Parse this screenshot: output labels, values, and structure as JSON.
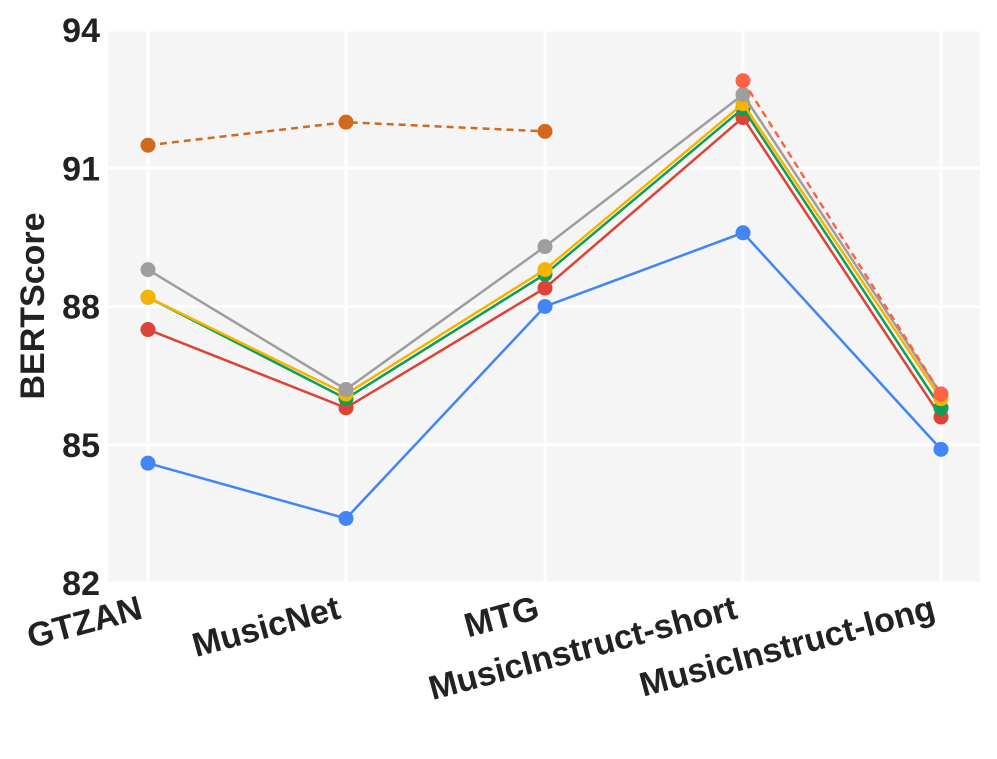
{
  "chart_data": {
    "type": "line",
    "title": "",
    "xlabel": "",
    "ylabel": "BERTScore",
    "categories": [
      "GTZAN",
      "MusicNet",
      "MTG",
      "MusicInstruct-short",
      "MusicInstruct-long"
    ],
    "yticks": [
      "82",
      "85",
      "88",
      "91",
      "94"
    ],
    "ylim": [
      82,
      94
    ],
    "grid": true,
    "legend": "none",
    "series": [
      {
        "color": "#d2691e",
        "dashed": true,
        "values": [
          91.5,
          92.0,
          91.8,
          null,
          null
        ]
      },
      {
        "color": "#4285f4",
        "dashed": false,
        "values": [
          84.6,
          83.4,
          88.0,
          89.6,
          84.9
        ]
      },
      {
        "color": "#db4437",
        "dashed": false,
        "values": [
          87.5,
          85.8,
          88.4,
          92.1,
          85.6
        ]
      },
      {
        "color": "#0f9d58",
        "dashed": false,
        "values": [
          88.2,
          86.0,
          88.7,
          92.3,
          85.8
        ]
      },
      {
        "color": "#f4b400",
        "dashed": false,
        "values": [
          88.2,
          86.1,
          88.8,
          92.4,
          86.0
        ]
      },
      {
        "color": "#9e9e9e",
        "dashed": false,
        "values": [
          88.8,
          86.2,
          89.3,
          92.6,
          86.1
        ]
      },
      {
        "color": "#ff6347",
        "dashed": true,
        "values": [
          null,
          null,
          null,
          92.9,
          86.1
        ]
      }
    ]
  }
}
